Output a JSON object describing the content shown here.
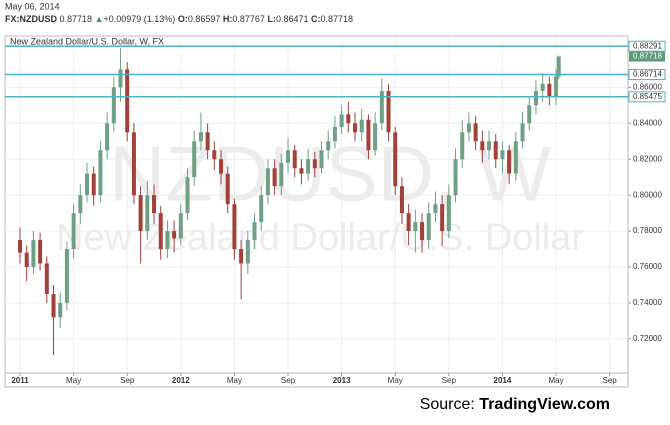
{
  "header": {
    "date": "May 06, 2014",
    "symbol": "FX:NZDUSD",
    "change": "+0.00979 (1.13%)",
    "o_label": "O:",
    "h_label": "H:",
    "l_label": "L:",
    "c_label": "C:"
  },
  "source": {
    "prefix": "Source:",
    "site": "TradingView.com"
  },
  "chart_data": {
    "type": "candlestick",
    "title": "New Zealand Dollar/U.S. Dollar, W, FX",
    "watermark": "NZDUSD, W",
    "watermark_sub": "New Zealand Dollar/U.S. Dollar",
    "up_color": "#6f9f84",
    "down_color": "#a3403a",
    "line_color": "#4bb5c1",
    "last_color": "#5d9b7a",
    "grid": true,
    "x": [
      0,
      0.5,
      1,
      1.5,
      2,
      2.5,
      3,
      3.5,
      4,
      4.5,
      5,
      5.5,
      6,
      6.5,
      7,
      7.5,
      8,
      8.5,
      9,
      9.5,
      10,
      10.5,
      11,
      11.5,
      12,
      12.5,
      13,
      13.5,
      14,
      14.5,
      15,
      15.5,
      16,
      16.5,
      17,
      17.5,
      18,
      18.5,
      19,
      19.5,
      20,
      20.5,
      21,
      21.5,
      22,
      22.5,
      23,
      23.5,
      24,
      24.5,
      25,
      25.5,
      26,
      26.5,
      27,
      27.5,
      28,
      28.5,
      29,
      29.5,
      30,
      30.5,
      31,
      31.5,
      32,
      32.5,
      33,
      33.5,
      34,
      34.5,
      35,
      35.5,
      36,
      36.5,
      37,
      37.5,
      38,
      38.5,
      39,
      39.5,
      40,
      40.2
    ],
    "open": [
      0.775,
      0.768,
      0.76,
      0.775,
      0.762,
      0.745,
      0.732,
      0.74,
      0.77,
      0.79,
      0.8,
      0.812,
      0.8,
      0.825,
      0.84,
      0.86,
      0.87,
      0.835,
      0.8,
      0.78,
      0.8,
      0.79,
      0.77,
      0.78,
      0.776,
      0.79,
      0.81,
      0.83,
      0.835,
      0.825,
      0.82,
      0.812,
      0.795,
      0.77,
      0.762,
      0.775,
      0.785,
      0.8,
      0.815,
      0.805,
      0.818,
      0.825,
      0.815,
      0.812,
      0.82,
      0.815,
      0.825,
      0.83,
      0.838,
      0.845,
      0.84,
      0.835,
      0.842,
      0.825,
      0.84,
      0.858,
      0.835,
      0.805,
      0.79,
      0.78,
      0.785,
      0.775,
      0.79,
      0.795,
      0.78,
      0.8,
      0.82,
      0.835,
      0.84,
      0.83,
      0.825,
      0.83,
      0.82,
      0.825,
      0.812,
      0.83,
      0.84,
      0.85,
      0.858,
      0.862,
      0.855,
      0.86597
    ],
    "high": [
      0.782,
      0.772,
      0.78,
      0.779,
      0.766,
      0.75,
      0.746,
      0.774,
      0.795,
      0.806,
      0.818,
      0.816,
      0.83,
      0.846,
      0.866,
      0.882,
      0.874,
      0.84,
      0.805,
      0.808,
      0.806,
      0.794,
      0.786,
      0.786,
      0.795,
      0.815,
      0.836,
      0.846,
      0.84,
      0.83,
      0.825,
      0.816,
      0.798,
      0.775,
      0.78,
      0.79,
      0.805,
      0.82,
      0.82,
      0.823,
      0.832,
      0.828,
      0.82,
      0.826,
      0.824,
      0.83,
      0.836,
      0.844,
      0.85,
      0.852,
      0.846,
      0.848,
      0.845,
      0.846,
      0.865,
      0.862,
      0.838,
      0.81,
      0.795,
      0.792,
      0.79,
      0.796,
      0.802,
      0.8,
      0.806,
      0.826,
      0.842,
      0.846,
      0.844,
      0.836,
      0.836,
      0.834,
      0.83,
      0.828,
      0.835,
      0.846,
      0.855,
      0.864,
      0.868,
      0.866,
      0.87,
      0.87767
    ],
    "low": [
      0.762,
      0.752,
      0.756,
      0.758,
      0.74,
      0.711,
      0.726,
      0.736,
      0.765,
      0.784,
      0.796,
      0.794,
      0.796,
      0.82,
      0.835,
      0.852,
      0.83,
      0.795,
      0.762,
      0.775,
      0.784,
      0.764,
      0.765,
      0.768,
      0.772,
      0.786,
      0.805,
      0.825,
      0.82,
      0.814,
      0.806,
      0.79,
      0.764,
      0.742,
      0.756,
      0.77,
      0.78,
      0.795,
      0.8,
      0.8,
      0.812,
      0.81,
      0.806,
      0.808,
      0.81,
      0.812,
      0.82,
      0.826,
      0.834,
      0.835,
      0.83,
      0.83,
      0.82,
      0.822,
      0.836,
      0.83,
      0.8,
      0.784,
      0.772,
      0.768,
      0.768,
      0.77,
      0.785,
      0.772,
      0.776,
      0.796,
      0.815,
      0.83,
      0.825,
      0.818,
      0.82,
      0.815,
      0.812,
      0.806,
      0.808,
      0.826,
      0.836,
      0.845,
      0.852,
      0.85,
      0.85,
      0.86471
    ],
    "close": [
      0.768,
      0.76,
      0.775,
      0.762,
      0.745,
      0.732,
      0.74,
      0.77,
      0.79,
      0.8,
      0.812,
      0.8,
      0.825,
      0.84,
      0.86,
      0.87,
      0.835,
      0.8,
      0.78,
      0.8,
      0.79,
      0.77,
      0.78,
      0.776,
      0.79,
      0.81,
      0.83,
      0.835,
      0.825,
      0.82,
      0.812,
      0.795,
      0.77,
      0.762,
      0.775,
      0.785,
      0.8,
      0.815,
      0.805,
      0.818,
      0.825,
      0.815,
      0.812,
      0.82,
      0.815,
      0.825,
      0.83,
      0.838,
      0.845,
      0.84,
      0.835,
      0.842,
      0.825,
      0.84,
      0.858,
      0.835,
      0.805,
      0.79,
      0.78,
      0.785,
      0.775,
      0.79,
      0.795,
      0.78,
      0.8,
      0.82,
      0.835,
      0.84,
      0.83,
      0.825,
      0.83,
      0.82,
      0.825,
      0.812,
      0.83,
      0.84,
      0.85,
      0.858,
      0.862,
      0.855,
      0.866,
      0.87718
    ],
    "hlines": [
      0.88291,
      0.86714,
      0.85475
    ],
    "xlim": [
      -1.12,
      45.37
    ],
    "xticks": [
      {
        "value": 0,
        "label": "2011"
      },
      {
        "value": 4,
        "label": "May"
      },
      {
        "value": 8,
        "label": "Sep"
      },
      {
        "value": 12,
        "label": "2012"
      },
      {
        "value": 16,
        "label": "May"
      },
      {
        "value": 20,
        "label": "Sep"
      },
      {
        "value": 24,
        "label": "2013"
      },
      {
        "value": 28,
        "label": "May"
      },
      {
        "value": 32,
        "label": "Sep"
      },
      {
        "value": 36,
        "label": "2014"
      },
      {
        "value": 40,
        "label": "May"
      },
      {
        "value": 44,
        "label": "Sep"
      }
    ],
    "ylim": [
      0.701,
      0.8886
    ],
    "yticks": [
      {
        "value": 0.72,
        "label": "0.72000"
      },
      {
        "value": 0.74,
        "label": "0.74000"
      },
      {
        "value": 0.76,
        "label": "0.76000"
      },
      {
        "value": 0.78,
        "label": "0.78000"
      },
      {
        "value": 0.8,
        "label": "0.80000"
      },
      {
        "value": 0.82,
        "label": "0.82000"
      },
      {
        "value": 0.84,
        "label": "0.84000"
      },
      {
        "value": 0.86,
        "label": "0.86000"
      }
    ]
  }
}
